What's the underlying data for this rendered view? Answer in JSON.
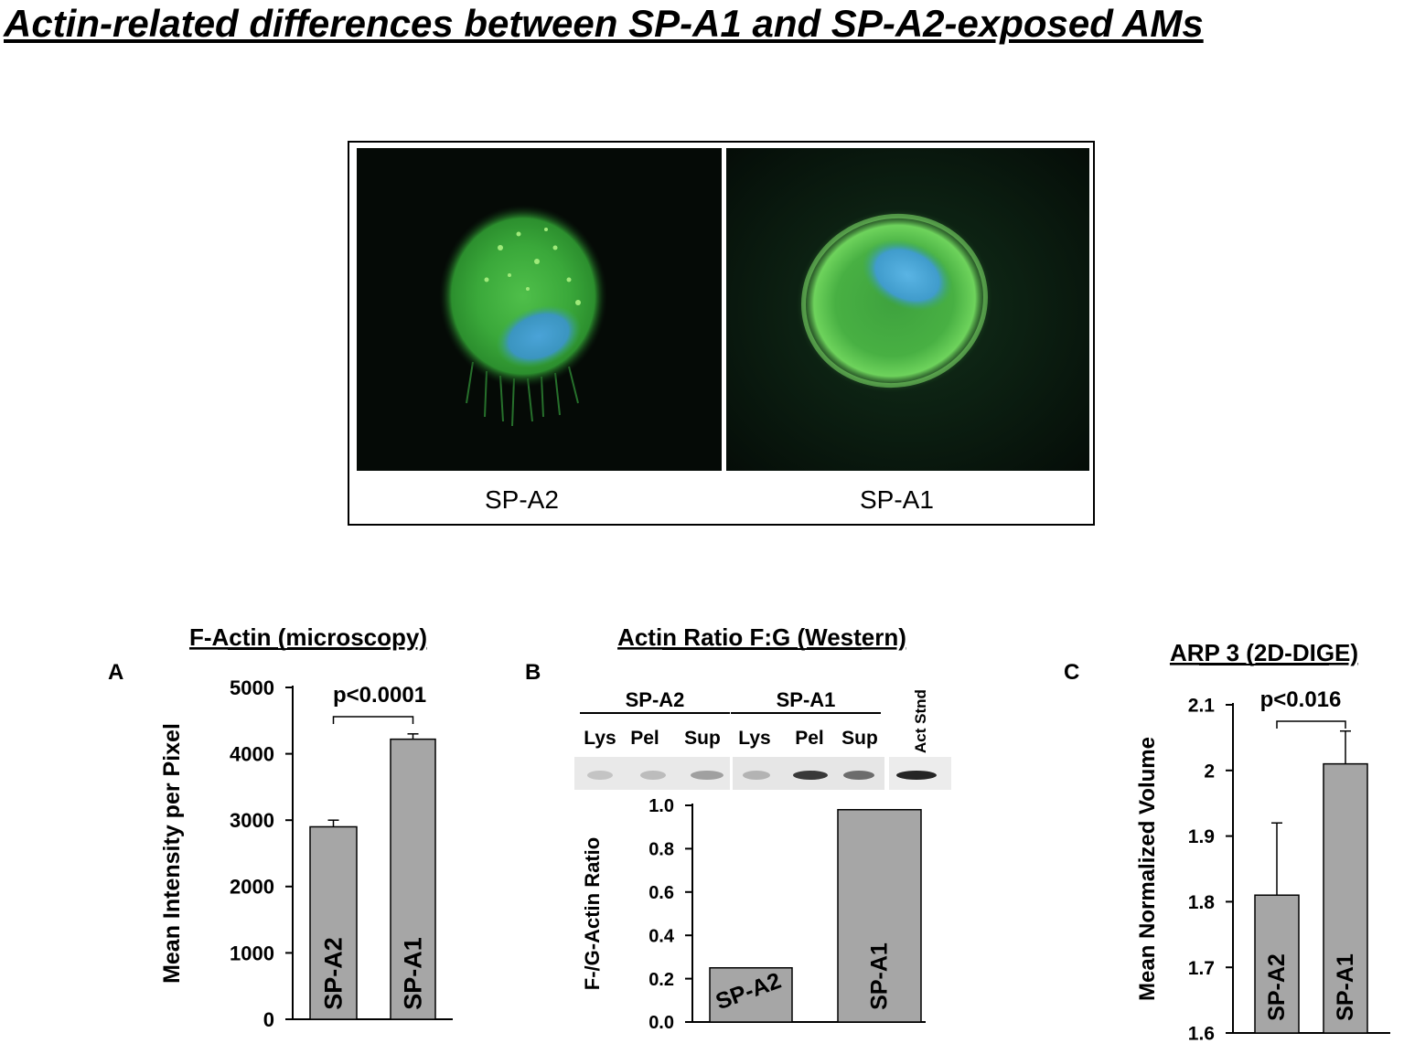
{
  "page": {
    "title": "Actin-related differences between SP-A1 and SP-A2-exposed AMs"
  },
  "micrographs": {
    "left_label": "SP-A2",
    "right_label": "SP-A1"
  },
  "western_blot": {
    "group_labels": [
      "SP-A2",
      "SP-A1"
    ],
    "lane_labels": [
      "Lys",
      "Pel",
      "Sup",
      "Lys",
      "Pel",
      "Sup"
    ],
    "standard_label": "Act Stnd"
  },
  "chart_data": [
    {
      "panel": "A",
      "type": "bar",
      "title": "F-Actin (microscopy)",
      "xlabel": "",
      "ylabel": "Mean Intensity per Pixel",
      "categories": [
        "SP-A2",
        "SP-A1"
      ],
      "values": [
        2900,
        4220
      ],
      "errors": [
        100,
        80
      ],
      "ylim": [
        0,
        5000
      ],
      "yticks": [
        0,
        1000,
        2000,
        3000,
        4000,
        5000
      ],
      "ytick_labels": [
        "0",
        "1000",
        "2000",
        "3000",
        "4000",
        "5000"
      ],
      "significance": "p<0.0001",
      "bar_color": "#a6a6a6",
      "grid": false,
      "legend": "none"
    },
    {
      "panel": "B",
      "type": "bar",
      "title": "Actin Ratio F:G (Western)",
      "xlabel": "",
      "ylabel": "F-/G-Actin Ratio",
      "categories": [
        "SP-A2",
        "SP-A1"
      ],
      "values": [
        0.25,
        0.98
      ],
      "ylim": [
        0,
        1.0
      ],
      "yticks": [
        0,
        0.2,
        0.4,
        0.6,
        0.8,
        1.0
      ],
      "ytick_labels": [
        "0.0",
        "0.2",
        "0.4",
        "0.6",
        "0.8",
        "1.0"
      ],
      "bar_color": "#a6a6a6",
      "grid": false,
      "legend": "none"
    },
    {
      "panel": "C",
      "type": "bar",
      "title": "ARP 3 (2D-DIGE)",
      "xlabel": "",
      "ylabel": "Mean Normalized Volume",
      "categories": [
        "SP-A2",
        "SP-A1"
      ],
      "values": [
        1.81,
        2.01
      ],
      "errors": [
        0.11,
        0.05
      ],
      "ylim": [
        1.6,
        2.1
      ],
      "yticks": [
        1.6,
        1.7,
        1.8,
        1.9,
        2.0,
        2.1
      ],
      "ytick_labels": [
        "1.6",
        "1.7",
        "1.8",
        "1.9",
        "2",
        "2.1"
      ],
      "significance": "p<0.016",
      "bar_color": "#a6a6a6",
      "grid": false,
      "legend": "none"
    }
  ]
}
